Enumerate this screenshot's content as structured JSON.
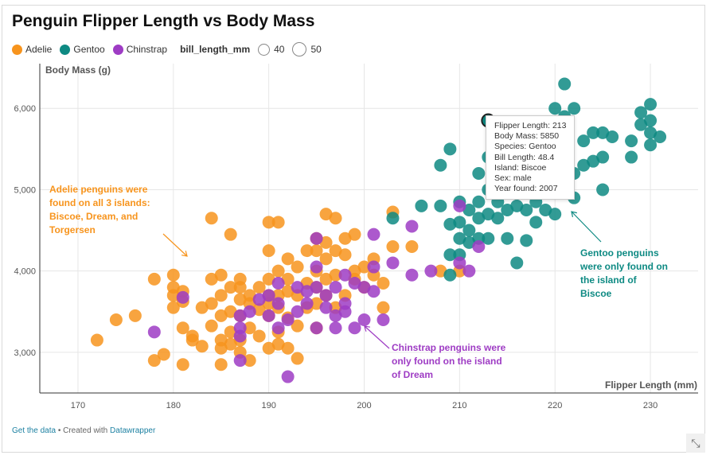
{
  "title": "Penguin Flipper Length vs Body Mass",
  "legend": {
    "species": [
      {
        "name": "Adelie",
        "color": "#f7941d"
      },
      {
        "name": "Gentoo",
        "color": "#0e8a83"
      },
      {
        "name": "Chinstrap",
        "color": "#9e3cc4"
      }
    ],
    "size_title": "bill_length_mm",
    "size_values": [
      "40",
      "50"
    ]
  },
  "tooltip": {
    "lines": [
      "Flipper Length: 213",
      "Body Mass: 5850",
      "Species: Gentoo",
      "Bill Length: 48.4",
      "Island: Biscoe",
      "Sex: male",
      "Year found: 2007"
    ]
  },
  "annotations": {
    "adelie": [
      "Adelie penguins were",
      "found on all 3 islands:",
      "Biscoe, Dream, and",
      "Torgersen"
    ],
    "chinstrap": [
      "Chinstrap penguins were",
      "only found on the island",
      "of Dream"
    ],
    "gentoo": [
      "Gentoo penguins",
      "were only found on",
      "the island of",
      "Biscoe"
    ]
  },
  "footer": {
    "data_link": "Get the data",
    "separator": " • Created with ",
    "credit_link": "Datawrapper"
  },
  "chart_data": {
    "type": "scatter",
    "title": "Penguin Flipper Length vs Body Mass",
    "xlabel": "Flipper Length (mm)",
    "ylabel": "Body Mass (g)",
    "xlim": [
      166,
      235
    ],
    "ylim": [
      2500,
      6550
    ],
    "xticks": [
      170,
      180,
      190,
      200,
      210,
      220,
      230
    ],
    "xtick_labels": [
      "170",
      "180",
      "190",
      "200",
      "210",
      "220",
      "230"
    ],
    "yticks": [
      3000,
      4000,
      5000,
      6000
    ],
    "ytick_labels": [
      "3,000",
      "4,000",
      "5,000",
      "6,000"
    ],
    "grid": true,
    "highlight": {
      "x": 213,
      "y": 5850,
      "species": "Gentoo"
    },
    "series": [
      {
        "name": "Adelie",
        "color": "#f7941d",
        "points": [
          [
            172,
            3150
          ],
          [
            174,
            3400
          ],
          [
            176,
            3450
          ],
          [
            178,
            3900
          ],
          [
            178,
            2900
          ],
          [
            179,
            2975
          ],
          [
            180,
            3950
          ],
          [
            180,
            3800
          ],
          [
            180,
            3700
          ],
          [
            180,
            3550
          ],
          [
            181,
            3625
          ],
          [
            181,
            3300
          ],
          [
            181,
            2850
          ],
          [
            181,
            3750
          ],
          [
            182,
            3200
          ],
          [
            182,
            3150
          ],
          [
            183,
            3550
          ],
          [
            183,
            3075
          ],
          [
            184,
            4650
          ],
          [
            184,
            3900
          ],
          [
            184,
            3325
          ],
          [
            184,
            3600
          ],
          [
            185,
            3700
          ],
          [
            185,
            3450
          ],
          [
            185,
            2850
          ],
          [
            185,
            3050
          ],
          [
            185,
            3950
          ],
          [
            185,
            3150
          ],
          [
            186,
            4450
          ],
          [
            186,
            3800
          ],
          [
            186,
            3500
          ],
          [
            186,
            3250
          ],
          [
            186,
            3100
          ],
          [
            187,
            3800
          ],
          [
            187,
            3650
          ],
          [
            187,
            3450
          ],
          [
            187,
            3150
          ],
          [
            187,
            3000
          ],
          [
            187,
            3900
          ],
          [
            188,
            3700
          ],
          [
            188,
            3600
          ],
          [
            188,
            3300
          ],
          [
            188,
            2900
          ],
          [
            189,
            3525
          ],
          [
            189,
            3200
          ],
          [
            189,
            3800
          ],
          [
            190,
            4600
          ],
          [
            190,
            4250
          ],
          [
            190,
            3900
          ],
          [
            190,
            3700
          ],
          [
            190,
            3450
          ],
          [
            190,
            3050
          ],
          [
            190,
            3600
          ],
          [
            191,
            4600
          ],
          [
            191,
            4000
          ],
          [
            191,
            3550
          ],
          [
            191,
            3100
          ],
          [
            191,
            3700
          ],
          [
            191,
            3250
          ],
          [
            192,
            4150
          ],
          [
            192,
            3900
          ],
          [
            192,
            3425
          ],
          [
            192,
            3050
          ],
          [
            192,
            3750
          ],
          [
            193,
            4050
          ],
          [
            193,
            3700
          ],
          [
            193,
            3325
          ],
          [
            193,
            2925
          ],
          [
            194,
            4250
          ],
          [
            194,
            3850
          ],
          [
            194,
            3550
          ],
          [
            195,
            4400
          ],
          [
            195,
            4250
          ],
          [
            195,
            4000
          ],
          [
            195,
            3800
          ],
          [
            195,
            3600
          ],
          [
            195,
            3300
          ],
          [
            196,
            4700
          ],
          [
            196,
            4150
          ],
          [
            196,
            3700
          ],
          [
            196,
            4350
          ],
          [
            196,
            3900
          ],
          [
            197,
            4650
          ],
          [
            197,
            4250
          ],
          [
            197,
            3950
          ],
          [
            197,
            3550
          ],
          [
            198,
            4400
          ],
          [
            198,
            4200
          ],
          [
            198,
            3700
          ],
          [
            199,
            4450
          ],
          [
            199,
            4000
          ],
          [
            199,
            3900
          ],
          [
            200,
            4050
          ],
          [
            200,
            3800
          ],
          [
            201,
            3950
          ],
          [
            201,
            4150
          ],
          [
            202,
            3550
          ],
          [
            202,
            3850
          ],
          [
            203,
            4725
          ],
          [
            203,
            4300
          ],
          [
            205,
            4300
          ],
          [
            208,
            4000
          ],
          [
            210,
            4000
          ]
        ]
      },
      {
        "name": "Gentoo",
        "color": "#0e8a83",
        "points": [
          [
            203,
            4650
          ],
          [
            206,
            4800
          ],
          [
            208,
            5300
          ],
          [
            208,
            4800
          ],
          [
            209,
            5500
          ],
          [
            209,
            4575
          ],
          [
            209,
            4200
          ],
          [
            209,
            3950
          ],
          [
            210,
            4850
          ],
          [
            210,
            4600
          ],
          [
            210,
            4400
          ],
          [
            210,
            4200
          ],
          [
            211,
            4750
          ],
          [
            211,
            4500
          ],
          [
            211,
            4350
          ],
          [
            212,
            4850
          ],
          [
            212,
            5200
          ],
          [
            212,
            4650
          ],
          [
            212,
            4400
          ],
          [
            213,
            5850
          ],
          [
            213,
            5400
          ],
          [
            213,
            5000
          ],
          [
            213,
            4700
          ],
          [
            213,
            4400
          ],
          [
            214,
            4650
          ],
          [
            214,
            4850
          ],
          [
            214,
            5200
          ],
          [
            215,
            5100
          ],
          [
            215,
            4750
          ],
          [
            215,
            4400
          ],
          [
            215,
            5550
          ],
          [
            216,
            5000
          ],
          [
            216,
            4800
          ],
          [
            216,
            4100
          ],
          [
            217,
            5100
          ],
          [
            217,
            4750
          ],
          [
            217,
            4375
          ],
          [
            218,
            5500
          ],
          [
            218,
            5200
          ],
          [
            218,
            4850
          ],
          [
            218,
            4600
          ],
          [
            219,
            5100
          ],
          [
            219,
            5700
          ],
          [
            219,
            4750
          ],
          [
            220,
            5800
          ],
          [
            220,
            6000
          ],
          [
            220,
            5200
          ],
          [
            220,
            4700
          ],
          [
            221,
            6300
          ],
          [
            221,
            5150
          ],
          [
            221,
            5900
          ],
          [
            222,
            6000
          ],
          [
            222,
            5200
          ],
          [
            222,
            4900
          ],
          [
            223,
            5600
          ],
          [
            223,
            5300
          ],
          [
            224,
            5700
          ],
          [
            224,
            5350
          ],
          [
            225,
            5700
          ],
          [
            225,
            5400
          ],
          [
            225,
            5000
          ],
          [
            226,
            5650
          ],
          [
            228,
            5400
          ],
          [
            228,
            5600
          ],
          [
            229,
            5800
          ],
          [
            229,
            5950
          ],
          [
            230,
            6050
          ],
          [
            230,
            5850
          ],
          [
            230,
            5700
          ],
          [
            230,
            5550
          ],
          [
            231,
            5650
          ]
        ]
      },
      {
        "name": "Chinstrap",
        "color": "#9e3cc4",
        "points": [
          [
            178,
            3250
          ],
          [
            181,
            3675
          ],
          [
            187,
            3300
          ],
          [
            187,
            3200
          ],
          [
            187,
            3450
          ],
          [
            187,
            2900
          ],
          [
            188,
            3500
          ],
          [
            189,
            3650
          ],
          [
            190,
            3700
          ],
          [
            190,
            3450
          ],
          [
            191,
            3850
          ],
          [
            191,
            3600
          ],
          [
            191,
            3300
          ],
          [
            192,
            3400
          ],
          [
            192,
            2700
          ],
          [
            193,
            3500
          ],
          [
            193,
            3800
          ],
          [
            194,
            3750
          ],
          [
            194,
            3600
          ],
          [
            195,
            3800
          ],
          [
            195,
            3300
          ],
          [
            195,
            4400
          ],
          [
            195,
            4050
          ],
          [
            196,
            3700
          ],
          [
            196,
            3550
          ],
          [
            197,
            3450
          ],
          [
            197,
            3800
          ],
          [
            197,
            3300
          ],
          [
            198,
            3950
          ],
          [
            198,
            3600
          ],
          [
            198,
            3500
          ],
          [
            199,
            3300
          ],
          [
            199,
            3850
          ],
          [
            200,
            3400
          ],
          [
            200,
            3800
          ],
          [
            201,
            4050
          ],
          [
            201,
            4450
          ],
          [
            201,
            3750
          ],
          [
            202,
            3400
          ],
          [
            203,
            4100
          ],
          [
            205,
            4550
          ],
          [
            205,
            3950
          ],
          [
            207,
            4000
          ],
          [
            210,
            4800
          ],
          [
            210,
            4100
          ],
          [
            211,
            4000
          ],
          [
            212,
            4300
          ]
        ]
      }
    ]
  }
}
